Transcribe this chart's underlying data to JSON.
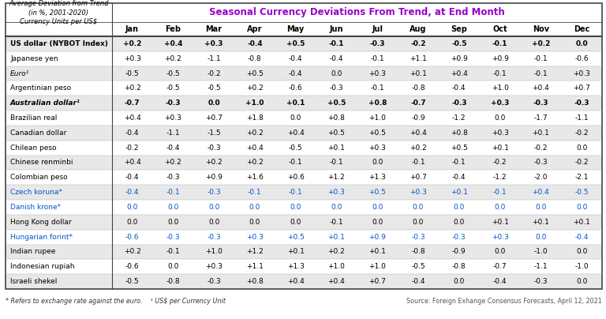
{
  "title": "Seasonal Currency Deviations From Trend, at End Month",
  "title_color": "#9900CC",
  "corner_label_lines": [
    "Average Deviation from Trend",
    "(in %, 2001-2020)",
    "Currency Units per US$"
  ],
  "months": [
    "Jan",
    "Feb",
    "Mar",
    "Apr",
    "May",
    "Jun",
    "Jul",
    "Aug",
    "Sep",
    "Oct",
    "Nov",
    "Dec"
  ],
  "rows": [
    {
      "name": "US dollar (NYBOT Index)",
      "bold": true,
      "italic": false,
      "color": "#000000",
      "values": [
        "+0.2",
        "+0.4",
        "+0.3",
        "-0.4",
        "+0.5",
        "-0.1",
        "-0.3",
        "-0.2",
        "-0.5",
        "-0.1",
        "+0.2",
        "0.0"
      ]
    },
    {
      "name": "Japanese yen",
      "bold": false,
      "italic": false,
      "color": "#000000",
      "values": [
        "+0.3",
        "+0.2",
        "-1.1",
        "-0.8",
        "-0.4",
        "-0.4",
        "-0.1",
        "+1.1",
        "+0.9",
        "+0.9",
        "-0.1",
        "-0.6"
      ]
    },
    {
      "name": "Euro¹",
      "bold": false,
      "italic": true,
      "color": "#000000",
      "values": [
        "-0.5",
        "-0.5",
        "-0.2",
        "+0.5",
        "-0.4",
        "0.0",
        "+0.3",
        "+0.1",
        "+0.4",
        "-0.1",
        "-0.1",
        "+0.3"
      ]
    },
    {
      "name": "Argentinian peso",
      "bold": false,
      "italic": false,
      "color": "#000000",
      "values": [
        "+0.2",
        "-0.5",
        "-0.5",
        "+0.2",
        "-0.6",
        "-0.3",
        "-0.1",
        "-0.8",
        "-0.4",
        "+1.0",
        "+0.4",
        "+0.7"
      ]
    },
    {
      "name": "Australian dollar¹",
      "bold": true,
      "italic": true,
      "color": "#000000",
      "values": [
        "-0.7",
        "-0.3",
        "0.0",
        "+1.0",
        "+0.1",
        "+0.5",
        "+0.8",
        "-0.7",
        "-0.3",
        "+0.3",
        "-0.3",
        "-0.3"
      ]
    },
    {
      "name": "Brazilian real",
      "bold": false,
      "italic": false,
      "color": "#000000",
      "values": [
        "+0.4",
        "+0.3",
        "+0.7",
        "+1.8",
        "0.0",
        "+0.8",
        "+1.0",
        "-0.9",
        "-1.2",
        "0.0",
        "-1.7",
        "-1.1"
      ]
    },
    {
      "name": "Canadian dollar",
      "bold": false,
      "italic": false,
      "color": "#000000",
      "values": [
        "-0.4",
        "-1.1",
        "-1.5",
        "+0.2",
        "+0.4",
        "+0.5",
        "+0.5",
        "+0.4",
        "+0.8",
        "+0.3",
        "+0.1",
        "-0.2"
      ]
    },
    {
      "name": "Chilean peso",
      "bold": false,
      "italic": false,
      "color": "#000000",
      "values": [
        "-0.2",
        "-0.4",
        "-0.3",
        "+0.4",
        "-0.5",
        "+0.1",
        "+0.3",
        "+0.2",
        "+0.5",
        "+0.1",
        "-0.2",
        "0.0"
      ]
    },
    {
      "name": "Chinese renminbi",
      "bold": false,
      "italic": false,
      "color": "#000000",
      "values": [
        "+0.4",
        "+0.2",
        "+0.2",
        "+0.2",
        "-0.1",
        "-0.1",
        "0.0",
        "-0.1",
        "-0.1",
        "-0.2",
        "-0.3",
        "-0.2"
      ]
    },
    {
      "name": "Colombian peso",
      "bold": false,
      "italic": false,
      "color": "#000000",
      "values": [
        "-0.4",
        "-0.3",
        "+0.9",
        "+1.6",
        "+0.6",
        "+1.2",
        "+1.3",
        "+0.7",
        "-0.4",
        "-1.2",
        "-2.0",
        "-2.1"
      ]
    },
    {
      "name": "Czech koruna*",
      "bold": false,
      "italic": false,
      "color": "#0055CC",
      "values": [
        "-0.4",
        "-0.1",
        "-0.3",
        "-0.1",
        "-0.1",
        "+0.3",
        "+0.5",
        "+0.3",
        "+0.1",
        "-0.1",
        "+0.4",
        "-0.5"
      ]
    },
    {
      "name": "Danish krone*",
      "bold": false,
      "italic": false,
      "color": "#0055CC",
      "values": [
        "0.0",
        "0.0",
        "0.0",
        "0.0",
        "0.0",
        "0.0",
        "0.0",
        "0.0",
        "0.0",
        "0.0",
        "0.0",
        "0.0"
      ]
    },
    {
      "name": "Hong Kong dollar",
      "bold": false,
      "italic": false,
      "color": "#000000",
      "values": [
        "0.0",
        "0.0",
        "0.0",
        "0.0",
        "0.0",
        "-0.1",
        "0.0",
        "0.0",
        "0.0",
        "+0.1",
        "+0.1",
        "+0.1"
      ]
    },
    {
      "name": "Hungarian forint*",
      "bold": false,
      "italic": false,
      "color": "#0055CC",
      "values": [
        "-0.6",
        "-0.3",
        "-0.3",
        "+0.3",
        "+0.5",
        "+0.1",
        "+0.9",
        "-0.3",
        "-0.3",
        "+0.3",
        "0.0",
        "-0.4"
      ]
    },
    {
      "name": "Indian rupee",
      "bold": false,
      "italic": false,
      "color": "#000000",
      "values": [
        "+0.2",
        "-0.1",
        "+1.0",
        "+1.2",
        "+0.1",
        "+0.2",
        "+0.1",
        "-0.8",
        "-0.9",
        "0.0",
        "-1.0",
        "0.0"
      ]
    },
    {
      "name": "Indonesian rupiah",
      "bold": false,
      "italic": false,
      "color": "#000000",
      "values": [
        "-0.6",
        "0.0",
        "+0.3",
        "+1.1",
        "+1.3",
        "+1.0",
        "+1.0",
        "-0.5",
        "-0.8",
        "-0.7",
        "-1.1",
        "-1.0"
      ]
    },
    {
      "name": "Israeli shekel",
      "bold": false,
      "italic": false,
      "color": "#000000",
      "values": [
        "-0.5",
        "-0.8",
        "-0.3",
        "+0.8",
        "+0.4",
        "+0.4",
        "+0.7",
        "-0.4",
        "0.0",
        "-0.4",
        "-0.3",
        "0.0"
      ]
    }
  ],
  "footnote_left": "* Refers to exchange rate against the euro.    ¹ US$ per Currency Unit",
  "footnote_right": "Source: Foreign Exhange Consensus Forecasts, April 12, 2021",
  "bg_color_odd": "#E8E8E8",
  "bg_color_even": "#FFFFFF",
  "border_color": "#444444",
  "fig_width": 7.68,
  "fig_height": 4.04,
  "dpi": 100
}
